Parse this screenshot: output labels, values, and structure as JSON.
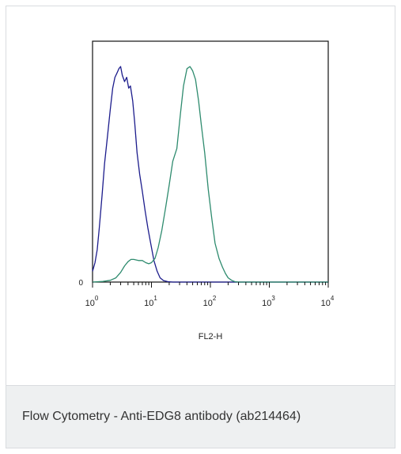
{
  "chart_data": {
    "type": "line",
    "xlabel": "FL2-H",
    "ylabel": "",
    "x_scale": "log",
    "xlim": [
      1,
      10000
    ],
    "ylim": [
      0,
      1
    ],
    "y_tick_labels": [
      "0"
    ],
    "x_tick_labels": [
      {
        "base": "10",
        "exp": "0",
        "value": 1
      },
      {
        "base": "10",
        "exp": "1",
        "value": 10
      },
      {
        "base": "10",
        "exp": "2",
        "value": 100
      },
      {
        "base": "10",
        "exp": "3",
        "value": 1000
      },
      {
        "base": "10",
        "exp": "4",
        "value": 10000
      }
    ],
    "series": [
      {
        "color": "#1c1c8c",
        "x": [
          1.0,
          1.1,
          1.2,
          1.3,
          1.45,
          1.6,
          1.8,
          2.0,
          2.2,
          2.4,
          2.6,
          2.8,
          3.0,
          3.2,
          3.5,
          3.8,
          4.1,
          4.4,
          4.8,
          5.2,
          5.7,
          6.3,
          7.0,
          7.8,
          8.7,
          9.7,
          11,
          12.5,
          14,
          16,
          19,
          23,
          30,
          45,
          10000
        ],
        "y": [
          0.05,
          0.09,
          0.15,
          0.25,
          0.4,
          0.55,
          0.68,
          0.8,
          0.9,
          0.95,
          0.97,
          0.99,
          1.0,
          0.96,
          0.93,
          0.95,
          0.9,
          0.91,
          0.84,
          0.74,
          0.6,
          0.5,
          0.42,
          0.33,
          0.25,
          0.18,
          0.1,
          0.05,
          0.02,
          0.007,
          0.002,
          0.0,
          0.0,
          0.0,
          0.0
        ]
      },
      {
        "color": "#2e8b6e",
        "x": [
          1.0,
          1.5,
          2.0,
          2.5,
          3.0,
          3.5,
          4.0,
          4.5,
          5.0,
          6.0,
          7.0,
          8.0,
          9.0,
          10.0,
          11.5,
          13,
          15,
          17.5,
          20,
          23,
          27,
          31,
          35,
          40,
          45,
          50,
          56,
          63,
          70,
          80,
          92,
          105,
          120,
          140,
          160,
          180,
          200,
          230,
          260,
          300,
          350,
          10000
        ],
        "y": [
          0.0,
          0.003,
          0.008,
          0.02,
          0.045,
          0.075,
          0.095,
          0.105,
          0.105,
          0.1,
          0.1,
          0.09,
          0.085,
          0.09,
          0.11,
          0.16,
          0.24,
          0.35,
          0.45,
          0.56,
          0.62,
          0.78,
          0.91,
          0.99,
          1.0,
          0.98,
          0.94,
          0.84,
          0.73,
          0.6,
          0.43,
          0.3,
          0.18,
          0.11,
          0.07,
          0.04,
          0.02,
          0.008,
          0.002,
          0.0,
          0.0,
          0.0
        ]
      }
    ],
    "grid": false,
    "legend": "none"
  },
  "caption": "Flow Cytometry - Anti-EDG8 antibody (ab214464)"
}
